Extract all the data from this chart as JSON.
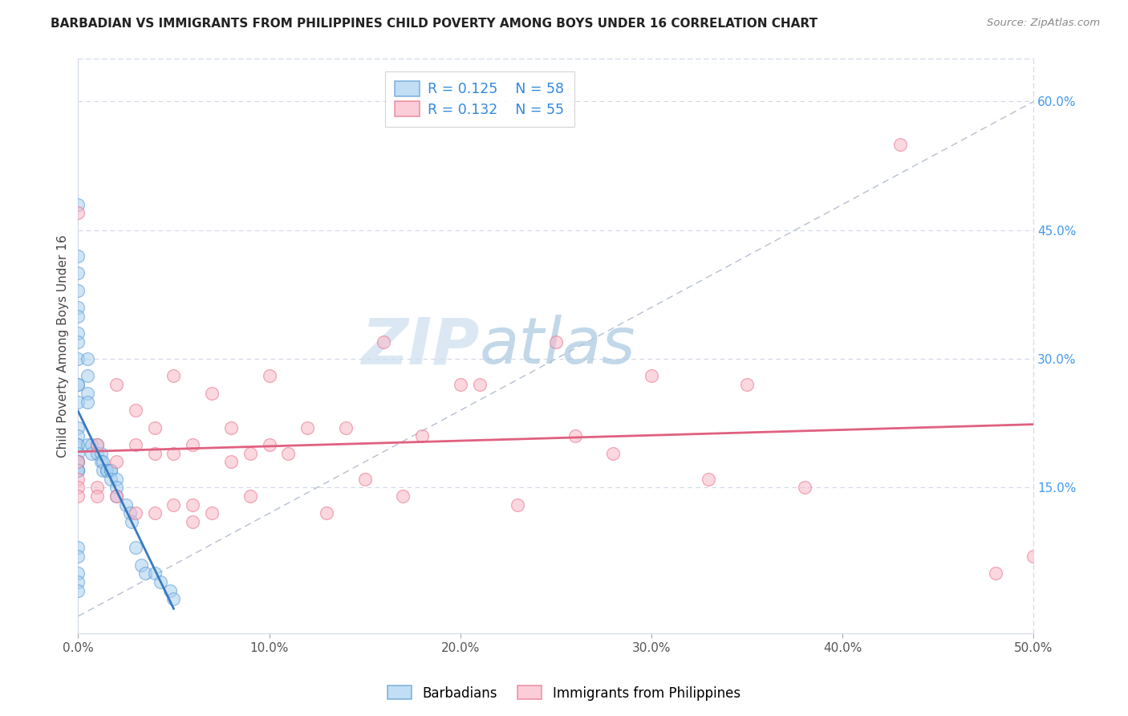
{
  "title": "BARBADIAN VS IMMIGRANTS FROM PHILIPPINES CHILD POVERTY AMONG BOYS UNDER 16 CORRELATION CHART",
  "source": "Source: ZipAtlas.com",
  "ylabel": "Child Poverty Among Boys Under 16",
  "xlim": [
    0.0,
    0.5
  ],
  "ylim": [
    -0.02,
    0.65
  ],
  "xticks": [
    0.0,
    0.1,
    0.2,
    0.3,
    0.4,
    0.5
  ],
  "xticklabels": [
    "0.0%",
    "10.0%",
    "20.0%",
    "30.0%",
    "40.0%",
    "50.0%"
  ],
  "yticks_right": [
    0.15,
    0.3,
    0.45,
    0.6
  ],
  "yticklabels_right": [
    "15.0%",
    "30.0%",
    "45.0%",
    "60.0%"
  ],
  "color_barbadian_fill": "#a8d0f0",
  "color_barbadian_edge": "#5b9bd5",
  "color_philippines_fill": "#f9b8c8",
  "color_philippines_edge": "#e8728a",
  "color_trendline_blue": "#3a7abf",
  "color_trendline_pink": "#e06080",
  "color_diagonal": "#b0b8cc",
  "watermark_zip": "ZIP",
  "watermark_atlas": "atlas",
  "color_watermark_zip": "#c5ddf0",
  "color_watermark_atlas": "#b8cce0",
  "background_color": "#ffffff",
  "grid_color": "#d0d8e8",
  "barbadian_x": [
    0.0,
    0.0,
    0.0,
    0.0,
    0.0,
    0.0,
    0.0,
    0.0,
    0.0,
    0.0,
    0.0,
    0.0,
    0.0,
    0.0,
    0.0,
    0.0,
    0.0,
    0.0,
    0.0,
    0.0,
    0.0,
    0.0,
    0.0,
    0.0,
    0.0,
    0.0,
    0.0,
    0.005,
    0.005,
    0.005,
    0.005,
    0.005,
    0.007,
    0.007,
    0.01,
    0.01,
    0.012,
    0.012,
    0.013,
    0.013,
    0.015,
    0.015,
    0.017,
    0.017,
    0.017,
    0.02,
    0.02,
    0.02,
    0.025,
    0.027,
    0.028,
    0.03,
    0.033,
    0.035,
    0.04,
    0.043,
    0.048,
    0.05
  ],
  "barbadian_y": [
    0.48,
    0.42,
    0.4,
    0.38,
    0.36,
    0.35,
    0.33,
    0.32,
    0.3,
    0.27,
    0.27,
    0.25,
    0.22,
    0.21,
    0.2,
    0.2,
    0.19,
    0.18,
    0.18,
    0.17,
    0.17,
    0.17,
    0.08,
    0.07,
    0.05,
    0.04,
    0.03,
    0.3,
    0.28,
    0.26,
    0.25,
    0.2,
    0.2,
    0.19,
    0.2,
    0.19,
    0.19,
    0.18,
    0.18,
    0.17,
    0.17,
    0.17,
    0.17,
    0.17,
    0.16,
    0.16,
    0.15,
    0.14,
    0.13,
    0.12,
    0.11,
    0.08,
    0.06,
    0.05,
    0.05,
    0.04,
    0.03,
    0.02
  ],
  "philippines_x": [
    0.0,
    0.0,
    0.0,
    0.0,
    0.0,
    0.01,
    0.01,
    0.01,
    0.02,
    0.02,
    0.02,
    0.03,
    0.03,
    0.03,
    0.04,
    0.04,
    0.04,
    0.05,
    0.05,
    0.05,
    0.06,
    0.06,
    0.06,
    0.07,
    0.07,
    0.08,
    0.08,
    0.09,
    0.09,
    0.1,
    0.1,
    0.11,
    0.12,
    0.13,
    0.14,
    0.15,
    0.16,
    0.17,
    0.18,
    0.2,
    0.21,
    0.23,
    0.25,
    0.26,
    0.28,
    0.3,
    0.33,
    0.35,
    0.38,
    0.43,
    0.48,
    0.5
  ],
  "philippines_y": [
    0.47,
    0.18,
    0.16,
    0.15,
    0.14,
    0.2,
    0.15,
    0.14,
    0.27,
    0.18,
    0.14,
    0.24,
    0.2,
    0.12,
    0.22,
    0.19,
    0.12,
    0.28,
    0.19,
    0.13,
    0.2,
    0.13,
    0.11,
    0.26,
    0.12,
    0.22,
    0.18,
    0.19,
    0.14,
    0.28,
    0.2,
    0.19,
    0.22,
    0.12,
    0.22,
    0.16,
    0.32,
    0.14,
    0.21,
    0.27,
    0.27,
    0.13,
    0.32,
    0.21,
    0.19,
    0.28,
    0.16,
    0.27,
    0.15,
    0.55,
    0.05,
    0.07
  ]
}
